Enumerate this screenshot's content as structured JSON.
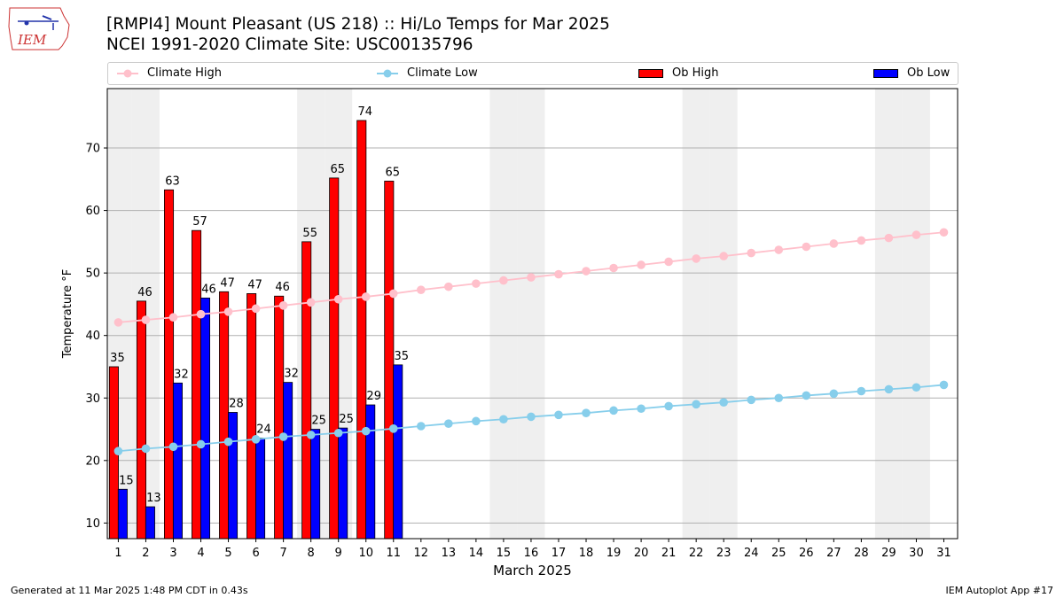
{
  "header": {
    "title": "[RMPI4] Mount Pleasant (US 218) :: Hi/Lo Temps for Mar 2025",
    "subtitle": "NCEI 1991-2020 Climate Site: USC00135796"
  },
  "logo": {
    "text": "IEM",
    "icon": "iowa-map-logo"
  },
  "footer": {
    "left": "Generated at 11 Mar 2025 1:48 PM CDT in 0.43s",
    "right": "IEM Autoplot App #17"
  },
  "colors": {
    "ob_high": "#ff0000",
    "ob_low": "#0000ff",
    "climate_high": "#ffc0cb",
    "climate_low": "#87ceeb",
    "weekend_band": "#efefef",
    "grid": "#b0b0b0"
  },
  "legend": [
    {
      "name": "Climate High",
      "kind": "line"
    },
    {
      "name": "Climate Low",
      "kind": "line"
    },
    {
      "name": "Ob High",
      "kind": "bar"
    },
    {
      "name": "Ob Low",
      "kind": "bar"
    }
  ],
  "chart_data": {
    "type": "bar",
    "xlabel": "March 2025",
    "ylabel": "Temperature °F",
    "ylim": [
      7.5,
      79.5
    ],
    "yticks": [
      10,
      20,
      30,
      40,
      50,
      60,
      70
    ],
    "x": [
      1,
      2,
      3,
      4,
      5,
      6,
      7,
      8,
      9,
      10,
      11,
      12,
      13,
      14,
      15,
      16,
      17,
      18,
      19,
      20,
      21,
      22,
      23,
      24,
      25,
      26,
      27,
      28,
      29,
      30,
      31
    ],
    "weekend_days": [
      1,
      2,
      8,
      9,
      15,
      16,
      22,
      23,
      29,
      30
    ],
    "grid": true,
    "legend_position": "top",
    "series": [
      {
        "name": "Ob High",
        "type": "bar",
        "x": [
          1,
          2,
          3,
          4,
          5,
          6,
          7,
          8,
          9,
          10,
          11
        ],
        "values": [
          35,
          45.5,
          63.3,
          56.8,
          47,
          46.7,
          46.3,
          55,
          65.2,
          74.4,
          64.7
        ],
        "labels": [
          "35",
          "46",
          "63",
          "57",
          "47",
          "47",
          "46",
          "55",
          "65",
          "74",
          "65"
        ]
      },
      {
        "name": "Ob Low",
        "type": "bar",
        "x": [
          1,
          2,
          3,
          4,
          5,
          6,
          7,
          8,
          9,
          10,
          11
        ],
        "values": [
          15.4,
          12.6,
          32.4,
          46,
          27.7,
          23.6,
          32.5,
          25,
          25.2,
          28.9,
          35.3
        ],
        "labels": [
          "15",
          "13",
          "32",
          "46",
          "28",
          "24",
          "32",
          "25",
          "25",
          "29",
          "35"
        ]
      },
      {
        "name": "Climate High",
        "type": "line",
        "values": [
          42.1,
          42.5,
          42.9,
          43.4,
          43.8,
          44.3,
          44.8,
          45.3,
          45.8,
          46.2,
          46.7,
          47.3,
          47.8,
          48.3,
          48.8,
          49.3,
          49.8,
          50.3,
          50.8,
          51.3,
          51.8,
          52.3,
          52.7,
          53.2,
          53.7,
          54.2,
          54.7,
          55.2,
          55.6,
          56.1,
          56.5
        ]
      },
      {
        "name": "Climate Low",
        "type": "line",
        "values": [
          21.5,
          21.9,
          22.2,
          22.6,
          23.0,
          23.4,
          23.8,
          24.1,
          24.4,
          24.7,
          25.1,
          25.5,
          25.9,
          26.3,
          26.6,
          27.0,
          27.3,
          27.6,
          28.0,
          28.3,
          28.7,
          29.0,
          29.3,
          29.7,
          30.0,
          30.4,
          30.7,
          31.1,
          31.4,
          31.7,
          32.1
        ]
      }
    ]
  }
}
